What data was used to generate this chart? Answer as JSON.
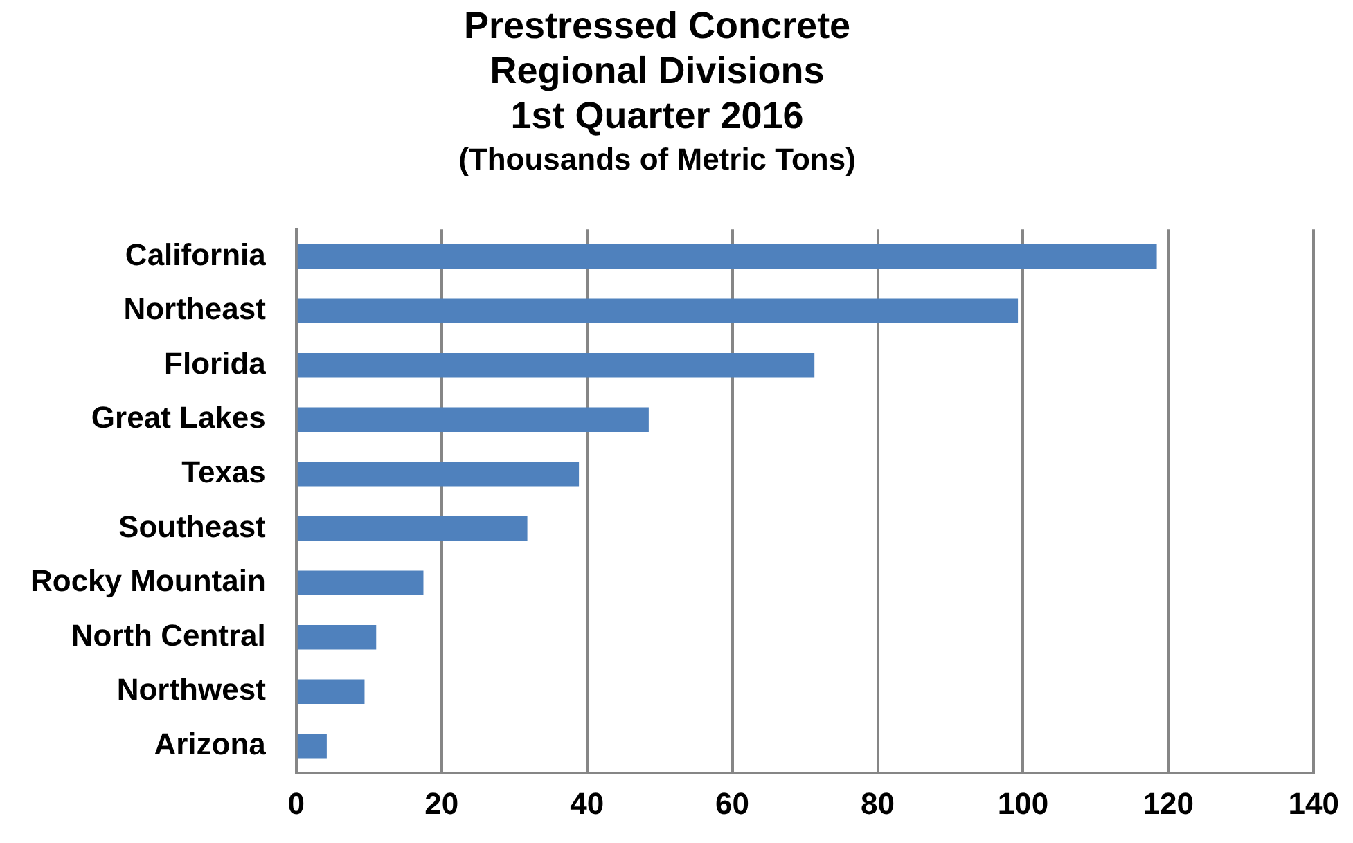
{
  "chart_data": {
    "type": "bar",
    "orientation": "horizontal",
    "title": [
      "Prestressed Concrete",
      "Regional Divisions",
      "1st Quarter 2016"
    ],
    "subtitle": "(Thousands of Metric Tons)",
    "categories": [
      "California",
      "Northeast",
      "Florida",
      "Great Lakes",
      "Texas",
      "Southeast",
      "Rocky Mountain",
      "North Central",
      "Northwest",
      "Arizona"
    ],
    "values": [
      118.4,
      99.3,
      71.3,
      48.5,
      38.9,
      31.8,
      17.5,
      11,
      9.4,
      4.2
    ],
    "color": "#4f81bd",
    "xlim": [
      0,
      140
    ],
    "xticks": [
      0,
      20,
      40,
      60,
      80,
      100,
      120,
      140
    ],
    "grid": "x",
    "legend": false
  }
}
